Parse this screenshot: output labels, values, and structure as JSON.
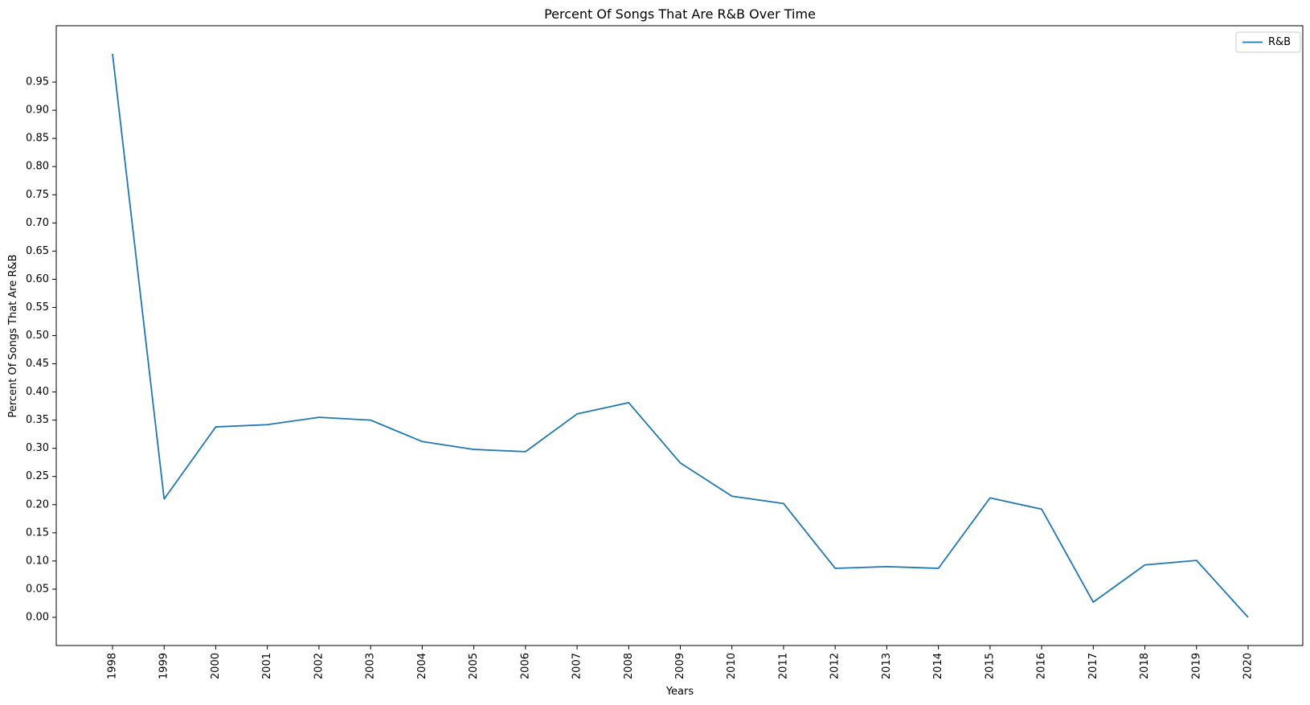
{
  "chart_data": {
    "type": "line",
    "title": "Percent Of Songs That Are R&B Over Time",
    "xlabel": "Years",
    "ylabel": "Percent Of Songs That Are R&B",
    "x": [
      "1998",
      "1999",
      "2000",
      "2001",
      "2002",
      "2003",
      "2004",
      "2005",
      "2006",
      "2007",
      "2008",
      "2009",
      "2010",
      "2011",
      "2012",
      "2013",
      "2014",
      "2015",
      "2016",
      "2017",
      "2018",
      "2019",
      "2020"
    ],
    "series": [
      {
        "name": "R&B",
        "color": "#1f77b4",
        "values": [
          1.0,
          0.21,
          0.338,
          0.342,
          0.355,
          0.35,
          0.312,
          0.298,
          0.294,
          0.361,
          0.381,
          0.274,
          0.215,
          0.202,
          0.087,
          0.09,
          0.087,
          0.212,
          0.192,
          0.027,
          0.093,
          0.101,
          0.0
        ]
      }
    ],
    "yticks": [
      "0.00",
      "0.05",
      "0.10",
      "0.15",
      "0.20",
      "0.25",
      "0.30",
      "0.35",
      "0.40",
      "0.45",
      "0.50",
      "0.55",
      "0.60",
      "0.65",
      "0.70",
      "0.75",
      "0.80",
      "0.85",
      "0.90",
      "0.95"
    ],
    "ylim": [
      -0.05,
      1.05
    ],
    "grid": false,
    "legend_position": "top-right"
  }
}
